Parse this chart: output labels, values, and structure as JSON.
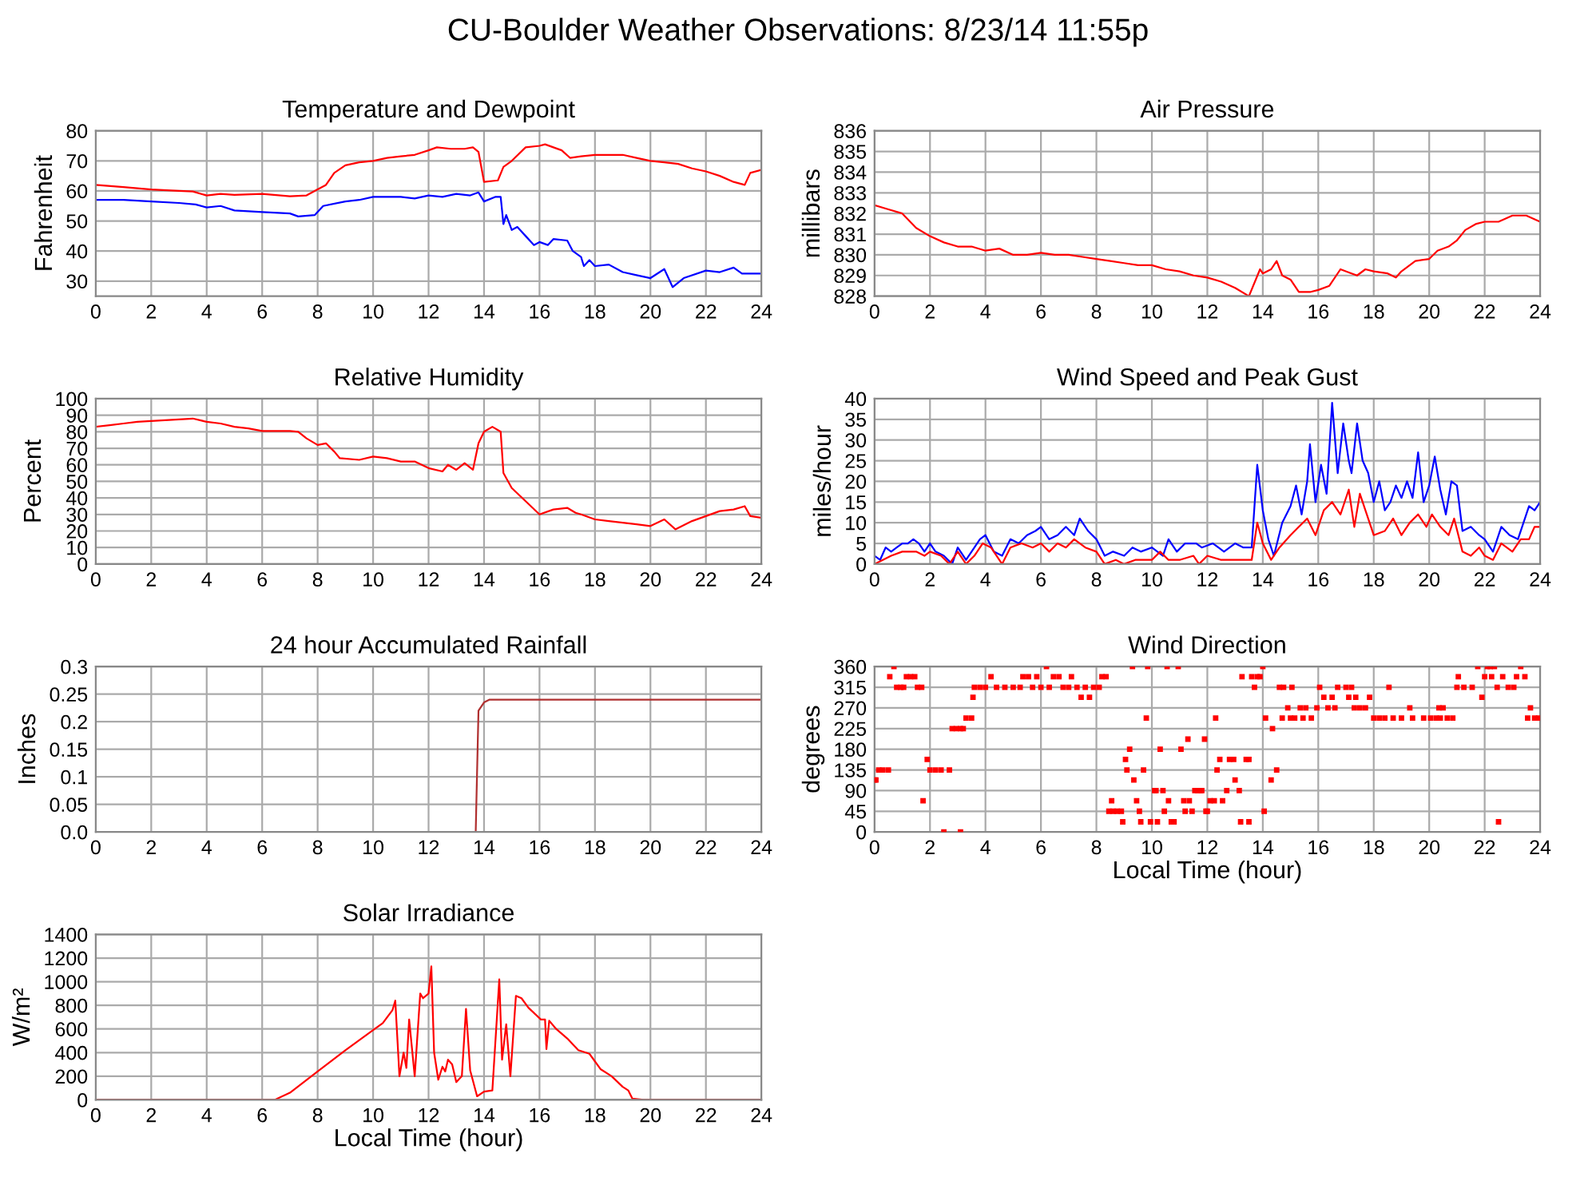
{
  "chart_data": [
    {
      "type": "line",
      "title": "Temperature and Dewpoint",
      "ylabel": "Fahrenheit",
      "annotations": [
        "CU-Boulder Weather Observations: 8/23/14 11:55p"
      ],
      "xlim": [
        0,
        24
      ],
      "xticks": [
        0,
        2,
        4,
        6,
        8,
        10,
        12,
        14,
        16,
        18,
        20,
        22,
        24
      ],
      "ylim": [
        25,
        80
      ],
      "yticks": [
        30,
        40,
        50,
        60,
        70,
        80
      ],
      "grid": true,
      "series": [
        {
          "color": "#ff0000",
          "x": [
            0,
            1,
            2,
            3,
            3.5,
            4,
            4.5,
            5,
            6,
            7,
            7.6,
            8,
            8.3,
            8.6,
            9,
            9.5,
            10,
            10.5,
            11,
            11.5,
            12,
            12.3,
            12.8,
            13.3,
            13.6,
            13.8,
            14,
            14.5,
            14.7,
            15,
            15.5,
            16,
            16.2,
            16.8,
            17.1,
            17.5,
            18,
            19,
            19.5,
            20,
            20.5,
            21,
            21.5,
            22,
            22.5,
            23,
            23.4,
            23.6,
            24
          ],
          "values": [
            62,
            61.3,
            60.5,
            60,
            59.8,
            58.5,
            59,
            58.7,
            59,
            58.2,
            58.5,
            60.5,
            62,
            66,
            68.5,
            69.5,
            70,
            71,
            71.5,
            72,
            73.5,
            74.5,
            74,
            74,
            74.5,
            73,
            63,
            63.5,
            68,
            70,
            74.5,
            75,
            75.5,
            73.5,
            71,
            71.5,
            72,
            72,
            71,
            70,
            69.5,
            69,
            67.5,
            66.5,
            65,
            63,
            62,
            66,
            67
          ]
        },
        {
          "color": "#0000ff",
          "x": [
            0,
            1,
            2,
            3,
            3.6,
            4,
            4.5,
            5,
            6,
            7,
            7.3,
            7.9,
            8.2,
            9,
            9.5,
            10,
            10.5,
            11,
            11.5,
            12,
            12.5,
            13,
            13.5,
            13.8,
            14,
            14.4,
            14.6,
            14.7,
            14.8,
            15,
            15.2,
            15.5,
            15.8,
            16,
            16.3,
            16.5,
            17,
            17.2,
            17.5,
            17.6,
            17.8,
            18,
            18.5,
            19,
            19.5,
            20,
            20.5,
            20.7,
            20.8,
            21.2,
            22,
            22.5,
            23,
            23.3,
            24
          ],
          "values": [
            57,
            57,
            56.5,
            56,
            55.5,
            54.5,
            55,
            53.5,
            53,
            52.5,
            51.5,
            52,
            55,
            56.5,
            57,
            58,
            58,
            58,
            57.5,
            58.5,
            58,
            59,
            58.5,
            59.5,
            56.5,
            58,
            58,
            49,
            52,
            47,
            48,
            45,
            42,
            43,
            42,
            44,
            43.5,
            40,
            38,
            35,
            37,
            35,
            35.5,
            33,
            32,
            31,
            34,
            30,
            28,
            31,
            33.5,
            33,
            34.5,
            32.5,
            32.5
          ]
        }
      ]
    },
    {
      "type": "line",
      "title": "Air Pressure",
      "ylabel": "millibars",
      "xlim": [
        0,
        24
      ],
      "xticks": [
        0,
        2,
        4,
        6,
        8,
        10,
        12,
        14,
        16,
        18,
        20,
        22,
        24
      ],
      "ylim": [
        828,
        836
      ],
      "yticks": [
        828,
        829,
        830,
        831,
        832,
        833,
        834,
        835,
        836
      ],
      "grid": true,
      "series": [
        {
          "color": "#ff0000",
          "x": [
            0,
            0.5,
            1,
            1.5,
            2,
            2.5,
            3,
            3.5,
            4,
            4.5,
            5,
            5.5,
            6,
            6.5,
            7,
            7.5,
            8,
            8.5,
            9,
            9.5,
            10,
            10.5,
            11,
            11.5,
            12,
            12.5,
            13,
            13.5,
            13.9,
            14,
            14.3,
            14.5,
            14.7,
            15,
            15.3,
            15.7,
            16,
            16.4,
            16.8,
            17.2,
            17.4,
            17.7,
            18,
            18.5,
            18.8,
            19,
            19.5,
            20,
            20.3,
            20.7,
            21,
            21.3,
            21.7,
            22,
            22.5,
            23,
            23.5,
            24
          ],
          "values": [
            832.4,
            832.2,
            832,
            831.3,
            830.9,
            830.6,
            830.4,
            830.4,
            830.2,
            830.3,
            830,
            830,
            830.1,
            830,
            830,
            829.9,
            829.8,
            829.7,
            829.6,
            829.5,
            829.5,
            829.3,
            829.2,
            829,
            828.9,
            828.7,
            828.4,
            828,
            829.3,
            829.1,
            829.3,
            829.7,
            829,
            828.8,
            828.2,
            828.2,
            828.3,
            828.5,
            829.3,
            829.1,
            829,
            829.3,
            829.2,
            829.1,
            828.9,
            829.2,
            829.7,
            829.8,
            830.2,
            830.4,
            830.7,
            831.2,
            831.5,
            831.6,
            831.6,
            831.9,
            831.9,
            831.6
          ]
        }
      ]
    },
    {
      "type": "line",
      "title": "Relative Humidity",
      "ylabel": "Percent",
      "xlim": [
        0,
        24
      ],
      "xticks": [
        0,
        2,
        4,
        6,
        8,
        10,
        12,
        14,
        16,
        18,
        20,
        22,
        24
      ],
      "ylim": [
        0,
        100
      ],
      "yticks": [
        0,
        10,
        20,
        30,
        40,
        50,
        60,
        70,
        80,
        90,
        100
      ],
      "grid": true,
      "series": [
        {
          "color": "#ff0000",
          "x": [
            0,
            0.5,
            1,
            1.5,
            2,
            2.5,
            3,
            3.5,
            4,
            4.5,
            5,
            5.5,
            6,
            7,
            7.3,
            7.6,
            8,
            8.3,
            8.6,
            8.8,
            9.5,
            10,
            10.5,
            11,
            11.5,
            12,
            12.5,
            12.7,
            13,
            13.3,
            13.6,
            13.8,
            14,
            14.3,
            14.6,
            14.7,
            15,
            15.5,
            16,
            16.5,
            17,
            17.3,
            17.5,
            18,
            18.5,
            19,
            19.5,
            20,
            20.5,
            20.9,
            21.5,
            22,
            22.5,
            23,
            23.4,
            23.6,
            24
          ],
          "values": [
            83,
            84,
            85,
            86,
            86.5,
            87,
            87.5,
            88,
            86,
            85,
            83,
            82,
            80.5,
            80.5,
            80,
            76,
            72,
            73,
            68,
            64,
            63,
            65,
            64,
            62,
            62,
            58,
            56,
            60,
            57,
            61,
            57,
            73,
            80,
            83,
            80,
            55,
            46,
            38,
            30,
            33,
            34,
            31,
            30,
            27,
            26,
            25,
            24,
            23,
            27,
            21,
            26,
            29,
            32,
            33,
            35,
            29,
            28
          ]
        }
      ]
    },
    {
      "type": "line",
      "title": "Wind Speed and Peak Gust",
      "ylabel": "miles/hour",
      "xlim": [
        0,
        24
      ],
      "xticks": [
        0,
        2,
        4,
        6,
        8,
        10,
        12,
        14,
        16,
        18,
        20,
        22,
        24
      ],
      "ylim": [
        0,
        40
      ],
      "yticks": [
        0,
        5,
        10,
        15,
        20,
        25,
        30,
        35,
        40
      ],
      "grid": true,
      "series": [
        {
          "color": "#0000ff",
          "x": [
            0,
            0.2,
            0.4,
            0.6,
            0.8,
            1,
            1.2,
            1.4,
            1.6,
            1.8,
            2,
            2.2,
            2.5,
            2.8,
            3,
            3.3,
            3.5,
            3.8,
            4,
            4.3,
            4.6,
            4.9,
            5.2,
            5.5,
            5.8,
            6,
            6.3,
            6.6,
            6.9,
            7.2,
            7.4,
            7.7,
            8,
            8.3,
            8.6,
            9,
            9.3,
            9.6,
            10,
            10.4,
            10.6,
            10.9,
            11.2,
            11.6,
            11.8,
            12.2,
            12.6,
            13,
            13.3,
            13.6,
            13.8,
            14,
            14.2,
            14.4,
            14.7,
            15,
            15.2,
            15.4,
            15.6,
            15.7,
            15.9,
            16.1,
            16.3,
            16.5,
            16.7,
            16.9,
            17.1,
            17.2,
            17.4,
            17.6,
            17.8,
            18,
            18.2,
            18.4,
            18.6,
            18.8,
            19,
            19.2,
            19.4,
            19.6,
            19.8,
            20,
            20.2,
            20.4,
            20.6,
            20.8,
            21,
            21.2,
            21.5,
            21.8,
            22,
            22.3,
            22.6,
            22.9,
            23.2,
            23.4,
            23.6,
            23.8,
            24
          ],
          "values": [
            2,
            1,
            4,
            3,
            4,
            5,
            5,
            6,
            5,
            3,
            5,
            3,
            2,
            0,
            4,
            1,
            3,
            6,
            7,
            3,
            2,
            6,
            5,
            7,
            8,
            9,
            6,
            7,
            9,
            7,
            11,
            8,
            6,
            2,
            3,
            2,
            4,
            3,
            4,
            2,
            6,
            3,
            5,
            5,
            4,
            5,
            3,
            5,
            4,
            4,
            24,
            13,
            6,
            2,
            10,
            14,
            19,
            12,
            20,
            29,
            15,
            24,
            17,
            39,
            22,
            34,
            25,
            22,
            34,
            25,
            22,
            15,
            20,
            13,
            15,
            19,
            16,
            20,
            16,
            27,
            15,
            19,
            26,
            18,
            12,
            20,
            19,
            8,
            9,
            7,
            6,
            3,
            9,
            7,
            6,
            10,
            14,
            13,
            15
          ]
        },
        {
          "color": "#ff0000",
          "x": [
            0,
            0.3,
            0.6,
            1,
            1.5,
            1.8,
            2,
            2.4,
            2.7,
            3,
            3.3,
            3.6,
            3.9,
            4.2,
            4.6,
            4.9,
            5.3,
            5.7,
            6,
            6.3,
            6.6,
            6.9,
            7.2,
            7.6,
            8,
            8.3,
            8.7,
            9,
            9.4,
            10,
            10.3,
            10.6,
            11,
            11.5,
            11.7,
            12,
            12.5,
            13,
            13.6,
            13.8,
            14,
            14.3,
            14.6,
            15,
            15.3,
            15.6,
            15.9,
            16.2,
            16.5,
            16.8,
            17.1,
            17.3,
            17.5,
            17.7,
            18,
            18.4,
            18.7,
            19,
            19.3,
            19.6,
            19.9,
            20.1,
            20.4,
            20.7,
            20.9,
            21.2,
            21.5,
            21.8,
            22,
            22.3,
            22.6,
            23,
            23.3,
            23.6,
            23.8,
            24
          ],
          "values": [
            0,
            1,
            2,
            3,
            3,
            2,
            3,
            2,
            0,
            3,
            0,
            2,
            5,
            4,
            0,
            4,
            5,
            4,
            5,
            3,
            5,
            4,
            6,
            4,
            3,
            0,
            1,
            0,
            1,
            1,
            3,
            1,
            1,
            2,
            0,
            2,
            1,
            1,
            1,
            10,
            5,
            1,
            4,
            7,
            9,
            11,
            7,
            13,
            15,
            12,
            18,
            9,
            17,
            13,
            7,
            8,
            11,
            7,
            10,
            12,
            9,
            12,
            9,
            7,
            11,
            3,
            2,
            4,
            2,
            1,
            5,
            3,
            6,
            6,
            9,
            9
          ]
        }
      ]
    },
    {
      "type": "line",
      "title": "24 hour Accumulated Rainfall",
      "ylabel": "Inches",
      "xlim": [
        0,
        24
      ],
      "xticks": [
        0,
        2,
        4,
        6,
        8,
        10,
        12,
        14,
        16,
        18,
        20,
        22,
        24
      ],
      "ylim": [
        0,
        0.3
      ],
      "yticks": [
        {
          "value": 0,
          "label": "0.0"
        },
        0.05,
        0.1,
        0.15,
        0.2,
        0.25,
        0.3
      ],
      "grid": true,
      "series": [
        {
          "color": "#b03030",
          "x": [
            0,
            13.7,
            13.8,
            14,
            14.2,
            24
          ],
          "values": [
            0,
            0,
            0.22,
            0.235,
            0.24,
            0.24
          ]
        }
      ]
    },
    {
      "type": "scatter",
      "title": "Wind Direction",
      "ylabel": "degrees",
      "xlabel": "Local Time (hour)",
      "marker": "square",
      "xlim": [
        0,
        24
      ],
      "xticks": [
        0,
        2,
        4,
        6,
        8,
        10,
        12,
        14,
        16,
        18,
        20,
        22,
        24
      ],
      "ylim": [
        0,
        360
      ],
      "yticks": [
        0,
        45,
        90,
        135,
        180,
        225,
        270,
        315,
        360
      ],
      "grid": true,
      "series": [
        {
          "color": "#ff0000",
          "x": [
            0,
            0.05,
            0.15,
            0.3,
            0.5,
            0.55,
            0.7,
            0.8,
            0.95,
            1.05,
            1.15,
            1.3,
            1.45,
            1.55,
            1.7,
            1.75,
            1.9,
            2.0,
            2.2,
            2.4,
            2.5,
            2.7,
            2.8,
            2.95,
            3.1,
            3.1,
            3.2,
            3.3,
            3.5,
            3.55,
            3.6,
            3.8,
            4.0,
            4.2,
            4.4,
            4.7,
            5.0,
            5.25,
            5.35,
            5.55,
            5.7,
            5.85,
            6.0,
            6.2,
            6.3,
            6.45,
            6.65,
            6.8,
            7.0,
            7.1,
            7.3,
            7.45,
            7.6,
            7.75,
            7.9,
            8.1,
            8.2,
            8.35,
            8.45,
            8.55,
            8.6,
            8.75,
            8.9,
            8.95,
            9.05,
            9.1,
            9.2,
            9.3,
            9.35,
            9.45,
            9.55,
            9.6,
            9.7,
            9.8,
            9.85,
            9.95,
            10.1,
            10.15,
            10.2,
            10.3,
            10.4,
            10.45,
            10.55,
            10.6,
            10.7,
            10.8,
            10.95,
            11.05,
            11.15,
            11.2,
            11.3,
            11.35,
            11.45,
            11.55,
            11.65,
            11.75,
            11.8,
            11.9,
            11.95,
            12.0,
            12.1,
            12.25,
            12.3,
            12.35,
            12.45,
            12.55,
            12.7,
            12.8,
            12.95,
            13.0,
            13.15,
            13.2,
            13.25,
            13.4,
            13.5,
            13.5,
            13.6,
            13.7,
            13.8,
            13.9,
            14.0,
            14.05,
            14.1,
            14.3,
            14.35,
            14.5,
            14.6,
            14.7,
            14.75,
            14.9,
            15.0,
            15.05,
            15.15,
            15.35,
            15.45,
            15.55,
            15.75,
            15.95,
            16.05,
            16.2,
            16.35,
            16.5,
            16.6,
            16.7,
            17.0,
            17.1,
            17.2,
            17.3,
            17.35,
            17.5,
            17.7,
            17.85,
            18.0,
            18.2,
            18.4,
            18.55,
            18.7,
            19.0,
            19.3,
            19.4,
            19.8,
            20.05,
            20.25,
            20.35,
            20.4,
            20.5,
            20.65,
            20.85,
            21.0,
            21.05,
            21.25,
            21.55,
            21.75,
            21.9,
            22.0,
            22.1,
            22.2,
            22.25,
            22.35,
            22.45,
            22.5,
            22.65,
            22.85,
            23.05,
            23.15,
            23.3,
            23.45,
            23.55,
            23.65,
            23.8,
            23.95
          ],
          "values": [
            113,
            113,
            135,
            135,
            135,
            338,
            360,
            315,
            315,
            315,
            338,
            338,
            338,
            315,
            315,
            68,
            158,
            135,
            135,
            135,
            0,
            135,
            225,
            225,
            225,
            0,
            225,
            248,
            248,
            293,
            315,
            315,
            315,
            338,
            315,
            315,
            315,
            315,
            338,
            338,
            315,
            338,
            315,
            360,
            315,
            338,
            338,
            315,
            315,
            338,
            315,
            293,
            315,
            293,
            315,
            315,
            338,
            338,
            45,
            68,
            45,
            45,
            45,
            22,
            158,
            135,
            180,
            360,
            113,
            68,
            45,
            22,
            135,
            248,
            360,
            22,
            90,
            90,
            22,
            180,
            90,
            45,
            360,
            68,
            22,
            22,
            360,
            180,
            68,
            45,
            202,
            68,
            45,
            90,
            90,
            90,
            90,
            202,
            45,
            45,
            68,
            68,
            248,
            135,
            158,
            68,
            90,
            158,
            158,
            113,
            90,
            22,
            338,
            158,
            158,
            22,
            338,
            315,
            338,
            338,
            360,
            45,
            248,
            113,
            225,
            135,
            315,
            248,
            315,
            270,
            248,
            315,
            248,
            270,
            248,
            270,
            248,
            270,
            315,
            293,
            270,
            293,
            270,
            315,
            315,
            293,
            315,
            270,
            293,
            270,
            270,
            293,
            248,
            248,
            248,
            315,
            248,
            248,
            270,
            248,
            248,
            248,
            248,
            270,
            248,
            270,
            248,
            248,
            315,
            338,
            315,
            315,
            360,
            293,
            338,
            360,
            360,
            338,
            360,
            315,
            22,
            338,
            315,
            315,
            338,
            360,
            338,
            248,
            270,
            248,
            248
          ]
        }
      ]
    },
    {
      "type": "line",
      "title": "Solar Irradiance",
      "ylabel": "W/m²",
      "xlabel": "Local Time (hour)",
      "xlim": [
        0,
        24
      ],
      "xticks": [
        0,
        2,
        4,
        6,
        8,
        10,
        12,
        14,
        16,
        18,
        20,
        22,
        24
      ],
      "ylim": [
        0,
        1400
      ],
      "yticks": [
        0,
        200,
        400,
        600,
        800,
        1000,
        1200,
        1400
      ],
      "grid": true,
      "series": [
        {
          "color": "#ff0000",
          "x": [
            0,
            6.45,
            7,
            8,
            9,
            10,
            10.35,
            10.7,
            10.8,
            10.95,
            11.1,
            11.2,
            11.3,
            11.5,
            11.7,
            11.8,
            12.0,
            12.1,
            12.2,
            12.35,
            12.5,
            12.6,
            12.7,
            12.85,
            13.0,
            13.2,
            13.35,
            13.5,
            13.75,
            14.0,
            14.3,
            14.55,
            14.65,
            14.8,
            14.95,
            15.15,
            15.35,
            15.6,
            16.05,
            16.2,
            16.25,
            16.35,
            16.6,
            17.0,
            17.4,
            17.8,
            18.2,
            18.6,
            19.0,
            19.2,
            19.35,
            19.75,
            24
          ],
          "values": [
            0,
            0,
            60,
            240,
            420,
            590,
            650,
            760,
            840,
            200,
            400,
            270,
            680,
            200,
            900,
            860,
            900,
            1130,
            400,
            170,
            280,
            240,
            340,
            300,
            150,
            200,
            770,
            250,
            30,
            70,
            80,
            1020,
            340,
            640,
            200,
            880,
            860,
            780,
            680,
            680,
            430,
            670,
            600,
            520,
            420,
            390,
            260,
            200,
            110,
            80,
            10,
            0,
            0
          ]
        }
      ]
    }
  ]
}
